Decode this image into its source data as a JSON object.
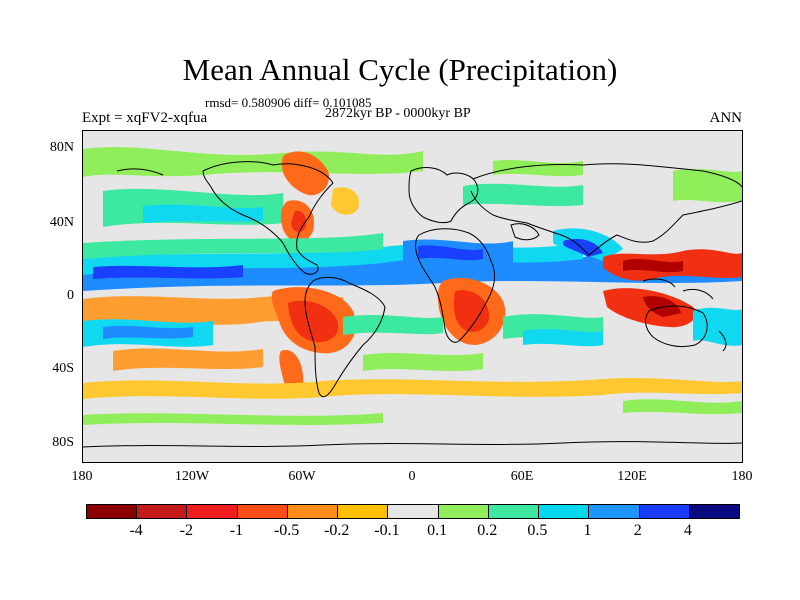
{
  "title": "Mean Annual Cycle (Precipitation)",
  "stats": "rmsd= 0.580906 diff= 0.101085",
  "period": "2872kyr BP - 0000kyr BP",
  "experiment": "Expt = xqFV2-xqfua",
  "season": "ANN",
  "lat_labels": [
    "80N",
    "40N",
    "0",
    "40S",
    "80S"
  ],
  "lon_labels": [
    "180",
    "120W",
    "60W",
    "0",
    "60E",
    "120E",
    "180"
  ],
  "colorbar": {
    "labels": [
      "-4",
      "-2",
      "-1",
      "-0.5",
      "-0.2",
      "-0.1",
      "0.1",
      "0.2",
      "0.5",
      "1",
      "2",
      "4"
    ],
    "colors": [
      "#8b0000",
      "#c41a1a",
      "#f01e1e",
      "#ff4d1a",
      "#ff8c1a",
      "#ffc000",
      "#e6e6e6",
      "#90ee5a",
      "#3de8a0",
      "#00d8f0",
      "#1e96ff",
      "#1a3cff",
      "#0a0a80"
    ]
  },
  "palette": {
    "dark_red": "#b00000",
    "red": "#f03010",
    "orange": "#ff6a1a",
    "light_orange": "#ff9e30",
    "yellow": "#ffc830",
    "green": "#90ee5a",
    "teal": "#3de8a0",
    "cyan": "#10d8f0",
    "blue": "#1e8cff",
    "dark_blue": "#1a40ff"
  }
}
